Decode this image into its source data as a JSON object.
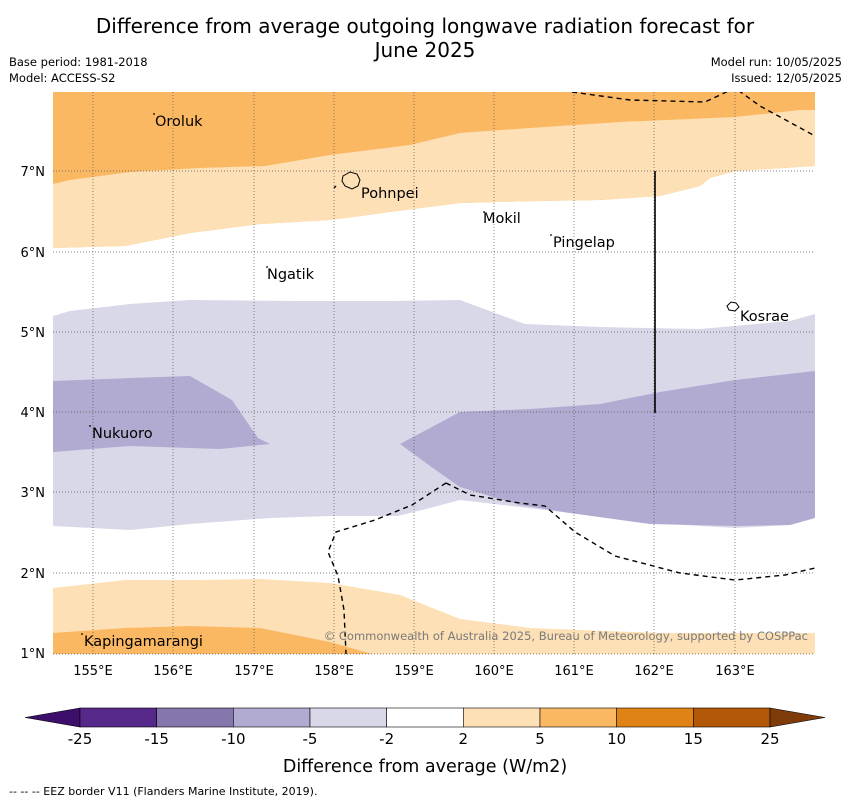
{
  "title_line1": "Difference from average outgoing longwave radiation forecast for",
  "title_line2": "June 2025",
  "base_period": "Base period: 1981-2018",
  "model": "Model: ACCESS-S2",
  "model_run": "Model run: 10/05/2025",
  "issued": "Issued: 12/05/2025",
  "map": {
    "lon_ticks": [
      "155°E",
      "156°E",
      "157°E",
      "158°E",
      "159°E",
      "160°E",
      "161°E",
      "162°E",
      "163°E"
    ],
    "lat_ticks": [
      "7°N",
      "6°N",
      "5°N",
      "4°N",
      "3°N",
      "2°N",
      "1°N"
    ],
    "places": [
      "Oroluk",
      "Pohnpei",
      "Mokil",
      "Pingelap",
      "Ngatik",
      "Kosrae",
      "Nukuoro",
      "Kapingamarangi"
    ],
    "copyright": "© Commonwealth of Australia 2025, Bureau of Meteorology, supported by COSPPac"
  },
  "colorbar": {
    "labels": [
      "-25",
      "-15",
      "-10",
      "-5",
      "-2",
      "2",
      "5",
      "10",
      "15",
      "25"
    ],
    "colors": [
      "#3e0e6b",
      "#55288a",
      "#8576ad",
      "#b1abd1",
      "#d8d8e9",
      "#ffffff",
      "#fde0b5",
      "#fbb863",
      "#e08316",
      "#b35808",
      "#7f3c0a"
    ],
    "label": "Difference from average (W/m2)"
  },
  "footnote": "--  --  -- EEZ border V11 (Flanders Marine Institute, 2019)."
}
